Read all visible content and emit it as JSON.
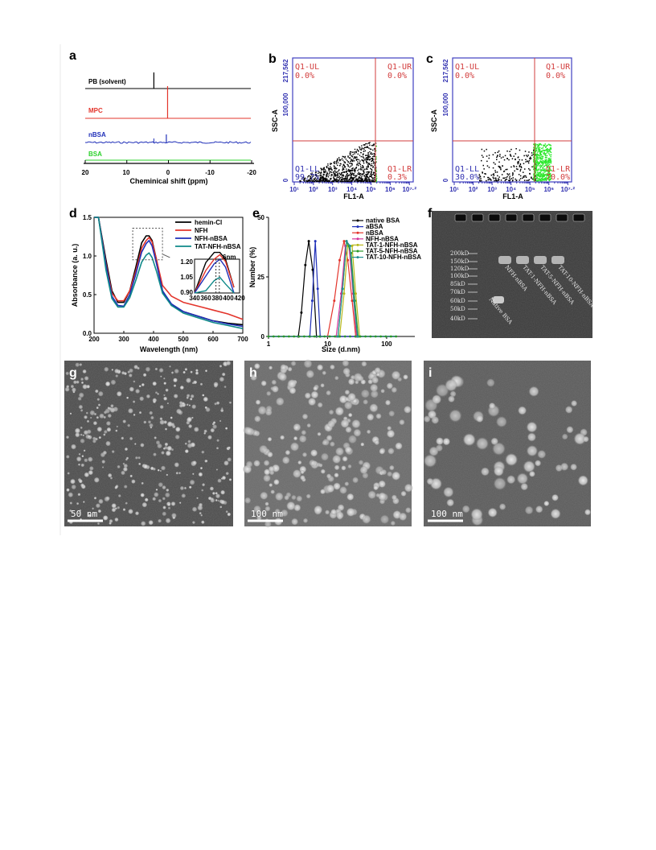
{
  "panels": {
    "a": {
      "label": "a",
      "traces": [
        {
          "name": "PB (solvent)",
          "color": "#000000"
        },
        {
          "name": "MPC",
          "color": "#e3342b"
        },
        {
          "name": "nBSA",
          "color": "#1f2fb8"
        },
        {
          "name": "BSA",
          "color": "#2ad12a"
        }
      ],
      "xlabel": "Cheminical shift (ppm)",
      "xticks": [
        "20",
        "10",
        "0",
        "-10",
        "-20"
      ]
    },
    "b": {
      "label": "b",
      "ylabel": "SSC-A",
      "xlabel": "FL1-A",
      "yticks": [
        "217,562",
        "100,000",
        "0"
      ],
      "quadrants": {
        "ul": "Q1-UL",
        "ul_val": "0.0%",
        "ur": "Q1-UR",
        "ur_val": "0.0%",
        "ll": "Q1-LL",
        "ll_val": "99.7%",
        "lr": "Q1-LR",
        "lr_val": "0.3%"
      }
    },
    "c": {
      "label": "c",
      "ylabel": "SSC-A",
      "xlabel": "FL1-A",
      "yticks": [
        "217,562",
        "100,000",
        "0"
      ],
      "quadrants": {
        "ul": "Q1-UL",
        "ul_val": "0.0%",
        "ur": "Q1-UR",
        "ur_val": "0.0%",
        "ll": "Q1-LL",
        "ll_val": "30.0%",
        "lr": "Q1-LR",
        "lr_val": "70.0%"
      }
    },
    "d": {
      "label": "d",
      "ylabel": "Absorbance (a. u.)",
      "xlabel": "Wavelength (nm)",
      "inset_note": "6nm",
      "inset_xticks": [
        "340",
        "360",
        "380",
        "400",
        "420"
      ],
      "inset_yticks": [
        "1.20",
        "1.05",
        "0.90"
      ]
    },
    "e": {
      "label": "e",
      "ylabel": "Number (%)",
      "xlabel": "Size (d.nm)"
    },
    "f": {
      "label": "f",
      "markers": [
        "200kD",
        "150kD",
        "120kD",
        "100kD",
        "85kD",
        "70kD",
        "60kD",
        "50kD",
        "40kD"
      ],
      "lanes": [
        "Native BSA",
        "NFH-nBSA",
        "TAT-1-NFH-nBSA",
        "TAT-5-NFH-nBSA",
        "TAT-10-NFH-nBSA"
      ]
    },
    "g": {
      "label": "g",
      "scalebar": "50 nm"
    },
    "h": {
      "label": "h",
      "scalebar": "100 nm"
    },
    "i": {
      "label": "i",
      "scalebar": "100 nm"
    }
  },
  "chart_data": [
    {
      "panel": "a",
      "type": "line",
      "xlabel": "Cheminical shift (ppm)",
      "xlim": [
        20,
        -20
      ],
      "x_ticks": [
        20,
        10,
        0,
        -10,
        -20
      ],
      "series": [
        {
          "name": "PB (solvent)",
          "peaks_ppm": [
            3.5
          ]
        },
        {
          "name": "MPC",
          "peaks_ppm": [
            0.2
          ]
        },
        {
          "name": "nBSA",
          "peaks_ppm": [
            0.5
          ]
        },
        {
          "name": "BSA",
          "peaks_ppm": []
        }
      ]
    },
    {
      "panel": "d",
      "type": "line",
      "xlabel": "Wavelength (nm)",
      "ylabel": "Absorbance (a. u.)",
      "xlim": [
        200,
        700
      ],
      "ylim": [
        0,
        1.5
      ],
      "x_ticks": [
        200,
        300,
        400,
        500,
        600,
        700
      ],
      "y_ticks": [
        0.0,
        0.5,
        1.0,
        1.5
      ],
      "series": [
        {
          "name": "hemin-Cl",
          "color": "#000000",
          "x": [
            200,
            215,
            240,
            260,
            280,
            300,
            320,
            340,
            360,
            375,
            385,
            395,
            410,
            430,
            460,
            500,
            550,
            600,
            650,
            700
          ],
          "y": [
            1.5,
            1.5,
            0.95,
            0.55,
            0.4,
            0.4,
            0.55,
            0.85,
            1.17,
            1.26,
            1.26,
            1.2,
            0.95,
            0.55,
            0.36,
            0.28,
            0.22,
            0.16,
            0.13,
            0.11
          ]
        },
        {
          "name": "NFH",
          "color": "#e3342b",
          "x": [
            200,
            215,
            240,
            260,
            280,
            300,
            320,
            340,
            360,
            375,
            385,
            395,
            410,
            430,
            460,
            500,
            550,
            600,
            650,
            700
          ],
          "y": [
            1.5,
            1.5,
            0.9,
            0.52,
            0.42,
            0.42,
            0.55,
            0.8,
            1.1,
            1.2,
            1.24,
            1.18,
            0.95,
            0.62,
            0.48,
            0.4,
            0.35,
            0.3,
            0.25,
            0.18
          ]
        },
        {
          "name": "NFH-nBSA",
          "color": "#1f2fb8",
          "x": [
            200,
            215,
            240,
            260,
            280,
            300,
            320,
            340,
            360,
            375,
            385,
            395,
            410,
            430,
            460,
            500,
            550,
            600,
            650,
            700
          ],
          "y": [
            1.5,
            1.5,
            0.88,
            0.48,
            0.36,
            0.35,
            0.5,
            0.76,
            1.05,
            1.16,
            1.2,
            1.13,
            0.9,
            0.55,
            0.38,
            0.28,
            0.22,
            0.16,
            0.12,
            0.09
          ]
        },
        {
          "name": "TAT-NFH-nBSA",
          "color": "#0f8a8a",
          "x": [
            200,
            215,
            240,
            260,
            280,
            300,
            320,
            340,
            360,
            375,
            385,
            395,
            410,
            430,
            460,
            500,
            550,
            600,
            650,
            700
          ],
          "y": [
            1.5,
            1.5,
            0.82,
            0.45,
            0.34,
            0.34,
            0.46,
            0.68,
            0.92,
            1.01,
            1.04,
            0.98,
            0.8,
            0.52,
            0.36,
            0.26,
            0.2,
            0.14,
            0.1,
            0.06
          ]
        }
      ],
      "inset": {
        "xlim": [
          340,
          420
        ],
        "ylim": [
          0.9,
          1.2
        ],
        "x_ticks": [
          340,
          360,
          380,
          400,
          420
        ],
        "y_ticks": [
          0.9,
          1.05,
          1.2
        ]
      }
    },
    {
      "panel": "e",
      "type": "line",
      "xlabel": "Size (d.nm)",
      "ylabel": "Number (%)",
      "xscale": "log",
      "xlim": [
        1,
        300
      ],
      "ylim": [
        0,
        50
      ],
      "x_ticks": [
        1,
        10,
        100
      ],
      "y_ticks": [
        0,
        25,
        50
      ],
      "series": [
        {
          "name": "native BSA",
          "color": "#000000",
          "x": [
            3.2,
            3.6,
            4.2,
            4.8,
            5.6,
            6.5
          ],
          "y": [
            0,
            10,
            30,
            40,
            28,
            0
          ]
        },
        {
          "name": "aBSA",
          "color": "#1f2fb8",
          "x": [
            5.0,
            5.5,
            6.2,
            6.8,
            7.5
          ],
          "y": [
            0,
            15,
            40,
            20,
            0
          ]
        },
        {
          "name": "nBSA",
          "color": "#e3342b",
          "x": [
            10,
            13,
            16,
            19,
            22,
            26,
            30
          ],
          "y": [
            0,
            15,
            32,
            40,
            32,
            15,
            0
          ]
        },
        {
          "name": "NFH-nBSA",
          "color": "#d4339b",
          "x": [
            14,
            17,
            20,
            23,
            27,
            31
          ],
          "y": [
            0,
            18,
            38,
            38,
            18,
            0
          ]
        },
        {
          "name": "TAT-1-NFH-nBSA",
          "color": "#b8b81a",
          "x": [
            16,
            19,
            22,
            26,
            30,
            35
          ],
          "y": [
            0,
            18,
            38,
            38,
            18,
            0
          ]
        },
        {
          "name": "TAT-5-NFH-nBSA",
          "color": "#2a9a2a",
          "x": [
            15,
            18,
            21,
            25,
            29,
            33
          ],
          "y": [
            0,
            20,
            40,
            35,
            15,
            0
          ]
        },
        {
          "name": "TAT-10-NFH-nBSA",
          "color": "#1f8f8f",
          "x": [
            15,
            18,
            21,
            24,
            28,
            32
          ],
          "y": [
            0,
            20,
            40,
            38,
            15,
            0
          ]
        }
      ]
    }
  ]
}
